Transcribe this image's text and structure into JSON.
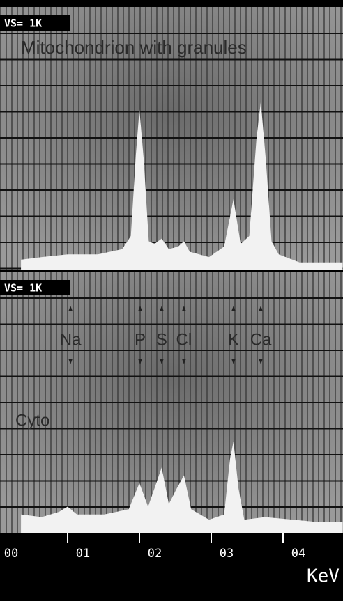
{
  "chart_data": [
    {
      "type": "area",
      "scale_label": "VS= 1K",
      "title": "Mitochondrion with granules",
      "x": [
        0.35,
        0.64,
        1.0,
        1.42,
        1.76,
        1.88,
        1.95,
        2.0,
        2.06,
        2.13,
        2.21,
        2.31,
        2.41,
        2.54,
        2.62,
        2.7,
        2.97,
        3.18,
        3.31,
        3.41,
        3.53,
        3.63,
        3.69,
        3.76,
        3.84,
        3.94,
        4.23,
        4.52,
        4.83
      ],
      "values": [
        4,
        5,
        6,
        6,
        8,
        13,
        44,
        61,
        42,
        11,
        10,
        12,
        8,
        9,
        11,
        7,
        5,
        9,
        27,
        10,
        13,
        50,
        64,
        42,
        11,
        6,
        3,
        3,
        3
      ],
      "color": "#f2f2f2",
      "xlim": [
        0.058,
        4.835
      ],
      "ylim": [
        0,
        100
      ]
    },
    {
      "type": "area",
      "scale_label": "VS= 1K",
      "title": "Cyto",
      "x": [
        0.35,
        0.64,
        0.88,
        1.0,
        1.13,
        1.51,
        1.85,
        2.0,
        2.12,
        2.21,
        2.31,
        2.41,
        2.52,
        2.62,
        2.72,
        2.97,
        3.18,
        3.26,
        3.31,
        3.38,
        3.46,
        3.75,
        4.14,
        4.52,
        4.83
      ],
      "values": [
        7,
        6,
        8,
        10,
        7,
        7,
        9,
        19,
        10,
        17,
        25,
        11,
        17,
        22,
        9,
        5,
        7,
        28,
        35,
        17,
        5,
        6,
        5,
        4,
        4
      ],
      "color": "#f2f2f2",
      "xlim": [
        0.058,
        4.835
      ],
      "ylim": [
        0,
        100
      ],
      "annotations": [
        {
          "text": "Na",
          "x": 1.04
        },
        {
          "text": "P",
          "x": 2.01
        },
        {
          "text": "S",
          "x": 2.31
        },
        {
          "text": "Cl",
          "x": 2.62
        },
        {
          "text": "K",
          "x": 3.31
        },
        {
          "text": "Ca",
          "x": 3.69
        }
      ],
      "xticks": [
        {
          "value": 0,
          "label": "00"
        },
        {
          "value": 1,
          "label": "01"
        },
        {
          "value": 2,
          "label": "02"
        },
        {
          "value": 3,
          "label": "03"
        },
        {
          "value": 4,
          "label": "04"
        }
      ],
      "xlabel": "KeV"
    }
  ]
}
